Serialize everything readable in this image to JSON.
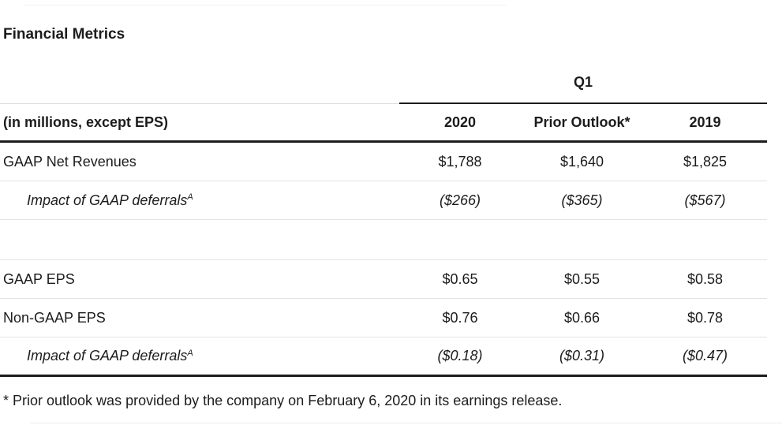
{
  "title": "Financial Metrics",
  "table": {
    "group_header": "Q1",
    "corner_label": "(in millions, except EPS)",
    "columns": [
      "2020",
      "Prior Outlook*",
      "2019"
    ],
    "rows": [
      {
        "label": "GAAP Net Revenues",
        "sup": "",
        "values": [
          "$1,788",
          "$1,640",
          "$1,825"
        ]
      },
      {
        "label": "Impact of GAAP deferrals",
        "sup": "A",
        "values": [
          "($266)",
          "($365)",
          "($567)"
        ]
      },
      {
        "label": "",
        "sup": "",
        "values": [
          "",
          "",
          ""
        ]
      },
      {
        "label": "GAAP EPS",
        "sup": "",
        "values": [
          "$0.65",
          "$0.55",
          "$0.58"
        ]
      },
      {
        "label": "Non-GAAP EPS",
        "sup": "",
        "values": [
          "$0.76",
          "$0.66",
          "$0.78"
        ]
      },
      {
        "label": "Impact of GAAP deferrals",
        "sup": "A",
        "values": [
          "($0.18)",
          "($0.31)",
          "($0.47)"
        ]
      }
    ]
  },
  "footnote": "* Prior outlook was provided by the company on February 6, 2020 in its earnings release.",
  "colors": {
    "text": "#1c1c1c",
    "rule_dark": "#1c1c1c",
    "rule_light": "#e3e3e3"
  }
}
